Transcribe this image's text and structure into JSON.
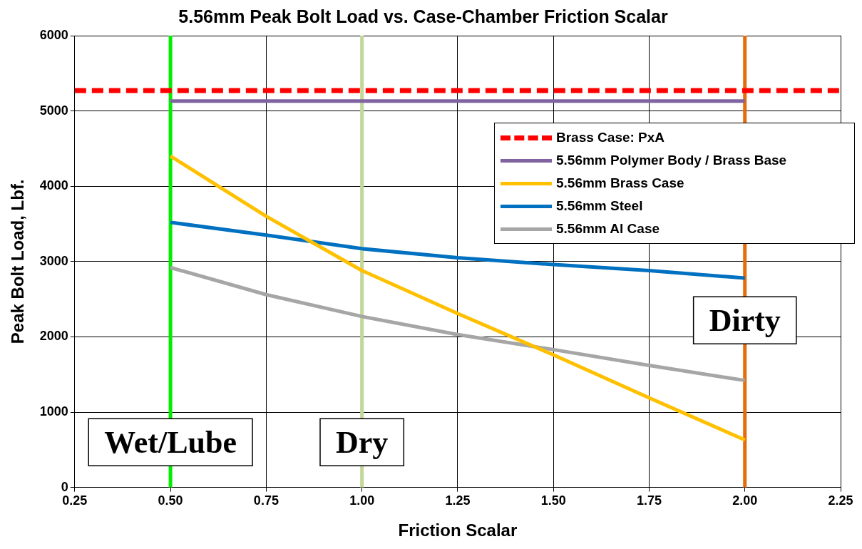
{
  "chart_data": {
    "type": "line",
    "title": "5.56mm Peak Bolt Load vs. Case-Chamber Friction Scalar",
    "xlabel": "Friction Scalar",
    "ylabel": "Peak Bolt Load, Lbf.",
    "xlim": [
      0.25,
      2.25
    ],
    "xticks": [
      {
        "value": 0.25,
        "label": "0.25"
      },
      {
        "value": 0.5,
        "label": "0.50"
      },
      {
        "value": 0.75,
        "label": "0.75"
      },
      {
        "value": 1,
        "label": "1.00"
      },
      {
        "value": 1.25,
        "label": "1.25"
      },
      {
        "value": 1.5,
        "label": "1.50"
      },
      {
        "value": 1.75,
        "label": "1.75"
      },
      {
        "value": 2,
        "label": "2.00"
      },
      {
        "value": 2.25,
        "label": "2.25"
      }
    ],
    "ylim": [
      0,
      6000
    ],
    "yticks": [
      0,
      1000,
      2000,
      3000,
      4000,
      5000,
      6000
    ],
    "grid": true,
    "legend": "top right",
    "marker": "none",
    "series": [
      {
        "name": "Brass Case: PxA",
        "color": "#ff0000",
        "line_style": "dashed",
        "x": [
          0.25,
          2.25
        ],
        "values": [
          5270,
          5270
        ]
      },
      {
        "name": "5.56mm Polymer Body / Brass Base",
        "color": "#8064a2",
        "x": [
          0.5,
          2
        ],
        "values": [
          5130,
          5130
        ]
      },
      {
        "name": "5.56mm Brass Case",
        "color": "#ffc000",
        "x": [
          0.5,
          0.75,
          1,
          1.25,
          1.5,
          1.75,
          2
        ],
        "values": [
          4400,
          3600,
          2880,
          2310,
          1760,
          1190,
          630
        ]
      },
      {
        "name": "5.56mm Steel",
        "color": "#0070c0",
        "x": [
          0.5,
          0.75,
          1,
          1.25,
          1.5,
          1.75,
          2
        ],
        "values": [
          3520,
          3350,
          3170,
          3050,
          2960,
          2880,
          2780
        ]
      },
      {
        "name": "5.56mm Al Case",
        "color": "#a6a6a6",
        "x": [
          0.5,
          0.75,
          1,
          1.25,
          1.5,
          1.75,
          2
        ],
        "values": [
          2920,
          2560,
          2270,
          2030,
          1830,
          1620,
          1420
        ]
      }
    ],
    "ref_lines": [
      {
        "axis": "x",
        "value": 0.5,
        "label": "Wet/Lube",
        "color": "#00ee00"
      },
      {
        "axis": "x",
        "value": 1,
        "label": "Dry",
        "color": "#c4d79b"
      },
      {
        "axis": "x",
        "value": 2,
        "label": "Dirty",
        "color": "#e46c0a"
      }
    ]
  }
}
